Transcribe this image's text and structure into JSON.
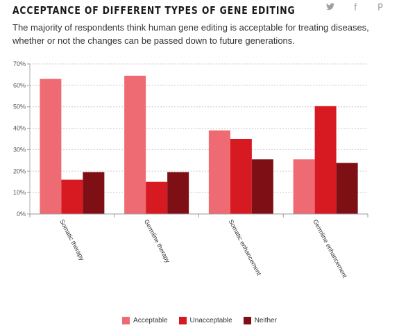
{
  "header": {
    "title": "ACCEPTANCE OF DIFFERENT TYPES OF GENE EDITING",
    "subtitle": "The majority of respondents think human gene editing is acceptable for treating diseases, whether or not the changes can be passed down to future generations."
  },
  "share": {
    "twitter_glyph": "🐦",
    "facebook_glyph": "f",
    "pinterest_glyph": "P",
    "icons": [
      "twitter-icon",
      "facebook-icon",
      "pinterest-icon"
    ]
  },
  "chart_data": {
    "type": "bar",
    "categories": [
      "Somatic therapy",
      "Germline therapy",
      "Somatic enhancement",
      "Germline enhancement"
    ],
    "series": [
      {
        "name": "Acceptable",
        "color": "#ef6b73",
        "values": [
          63,
          64.5,
          39,
          25.5
        ]
      },
      {
        "name": "Unacceptable",
        "color": "#d71a22",
        "values": [
          16,
          15,
          35,
          50.3
        ]
      },
      {
        "name": "Neither",
        "color": "#7e1015",
        "values": [
          19.5,
          19.5,
          25.5,
          23.8
        ]
      }
    ],
    "ylim": [
      0,
      70
    ],
    "yticks": [
      "0%",
      "10%",
      "20%",
      "30%",
      "40%",
      "50%",
      "60%",
      "70%"
    ],
    "ytick_values": [
      0,
      10,
      20,
      30,
      40,
      50,
      60,
      70
    ],
    "grid": true,
    "legend_position": "bottom-center"
  }
}
